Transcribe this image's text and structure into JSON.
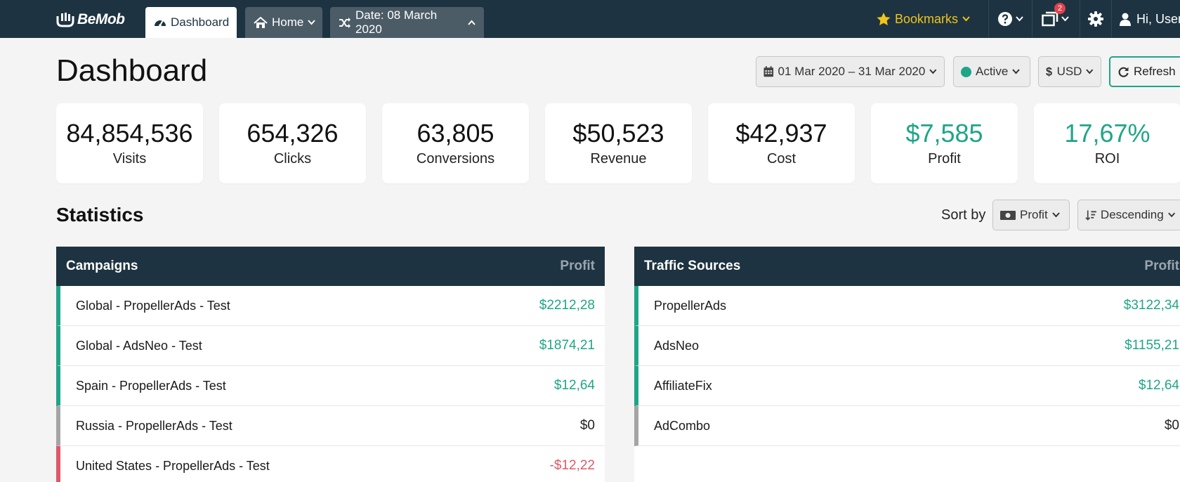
{
  "app": {
    "logo_text": "BeMob"
  },
  "tabs": [
    {
      "label": "Dashboard",
      "icon": "gauge-icon",
      "active": true
    },
    {
      "label": "Home",
      "icon": "home-icon"
    },
    {
      "label": "Date: 08 March 2020",
      "icon": "shuffle-icon"
    }
  ],
  "topbar": {
    "bookmarks_label": "Bookmarks",
    "notifications_count": "2",
    "user_label": "Hi, User"
  },
  "header": {
    "title": "Dashboard",
    "date_range": "01 Mar 2020 – 31 Mar 2020",
    "status": "Active",
    "currency": "USD",
    "refresh_label": "Refresh"
  },
  "kpis": [
    {
      "value": "84,854,536",
      "label": "Visits"
    },
    {
      "value": "654,326",
      "label": "Clicks"
    },
    {
      "value": "63,805",
      "label": "Conversions"
    },
    {
      "value": "$50,523",
      "label": "Revenue"
    },
    {
      "value": "$42,937",
      "label": "Cost"
    },
    {
      "value": "$7,585",
      "label": "Profit",
      "highlight": true
    },
    {
      "value": "17,67%",
      "label": "ROI",
      "highlight": true
    }
  ],
  "statistics": {
    "title": "Statistics",
    "sort_label": "Sort by",
    "sort_field": "Profit",
    "sort_order": "Descending"
  },
  "campaigns": {
    "title": "Campaigns",
    "metric": "Profit",
    "rows": [
      {
        "name": "Global - PropellerAds - Test",
        "value": "$2212,28",
        "status": "positive"
      },
      {
        "name": "Global - AdsNeo - Test",
        "value": "$1874,21",
        "status": "positive"
      },
      {
        "name": "Spain - PropellerAds - Test",
        "value": "$12,64",
        "status": "positive"
      },
      {
        "name": "Russia - PropellerAds - Test",
        "value": "$0",
        "status": "neutral"
      },
      {
        "name": "United States - PropellerAds - Test",
        "value": "-$12,22",
        "status": "negative"
      }
    ]
  },
  "traffic_sources": {
    "title": "Traffic Sources",
    "metric": "Profit",
    "rows": [
      {
        "name": "PropellerAds",
        "value": "$3122,34",
        "status": "positive"
      },
      {
        "name": "AdsNeo",
        "value": "$1155,21",
        "status": "positive"
      },
      {
        "name": "AffiliateFix",
        "value": "$12,64",
        "status": "positive"
      },
      {
        "name": "AdCombo",
        "value": "$0",
        "status": "neutral"
      }
    ]
  },
  "colors": {
    "topbar": "#1d3341",
    "accent_green": "#1fa587",
    "negative_red": "#e05868",
    "bookmark_yellow": "#f0c419"
  }
}
